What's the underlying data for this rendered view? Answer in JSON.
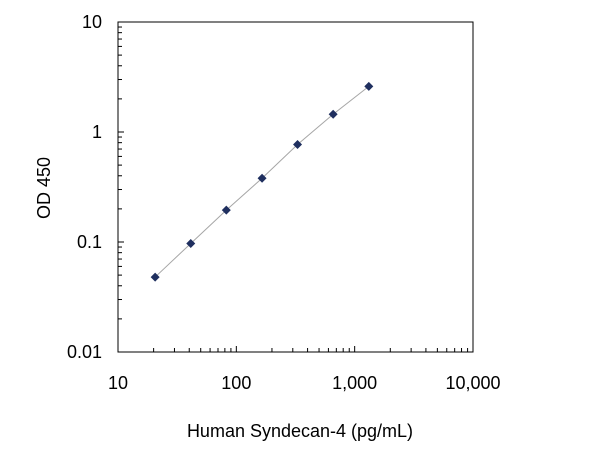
{
  "chart_data": {
    "type": "scatter",
    "title": "",
    "xlabel": "Human Syndecan-4  (pg/mL)",
    "ylabel": "OD 450",
    "x_scale": "log",
    "y_scale": "log",
    "xlim": [
      10,
      10000
    ],
    "ylim": [
      0.01,
      10
    ],
    "x_ticks": [
      10,
      100,
      1000,
      10000
    ],
    "x_tick_labels": [
      "10",
      "100",
      "1,000",
      "10,000"
    ],
    "y_ticks": [
      0.01,
      0.1,
      1,
      10
    ],
    "y_tick_labels": [
      "0.01",
      "0.1",
      "1",
      "10"
    ],
    "grid": false,
    "legend": "none",
    "marker_color": "#1f2f5f",
    "fit_line_color": "#a6a6a6",
    "series": [
      {
        "x": [
          20.6,
          41.2,
          82.3,
          165,
          329,
          658,
          1317
        ],
        "y": [
          0.048,
          0.097,
          0.195,
          0.38,
          0.77,
          1.45,
          2.6
        ],
        "fit_line": true
      }
    ]
  }
}
